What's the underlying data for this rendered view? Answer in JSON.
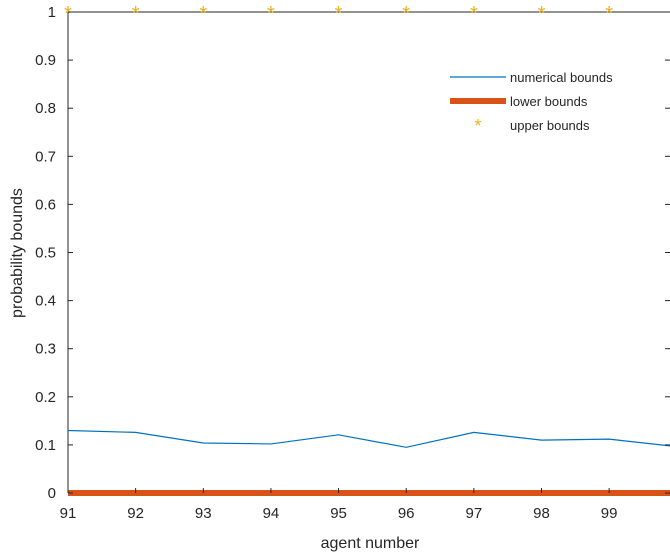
{
  "chart_data": {
    "type": "line",
    "xlabel": "agent number",
    "ylabel": "probability bounds",
    "xlim": [
      91,
      99.9
    ],
    "ylim": [
      0,
      1
    ],
    "xticks": [
      91,
      92,
      93,
      94,
      95,
      96,
      97,
      98,
      99
    ],
    "xtick_labels": [
      "91",
      "92",
      "93",
      "94",
      "95",
      "96",
      "97",
      "98",
      "99"
    ],
    "yticks": [
      0,
      0.1,
      0.2,
      0.3,
      0.4,
      0.5,
      0.6,
      0.7,
      0.8,
      0.9,
      1
    ],
    "ytick_labels": [
      "0",
      "0.1",
      "0.2",
      "0.3",
      "0.4",
      "0.5",
      "0.6",
      "0.7",
      "0.8",
      "0.9",
      "1"
    ],
    "grid": false,
    "legend_position": "top-right",
    "series": [
      {
        "name": "numerical bounds",
        "color": "#0072BD",
        "style": "line",
        "x": [
          91,
          92,
          93,
          94,
          95,
          96,
          97,
          98,
          99,
          99.9
        ],
        "values": [
          0.13,
          0.126,
          0.104,
          0.102,
          0.121,
          0.095,
          0.126,
          0.11,
          0.112,
          0.098
        ]
      },
      {
        "name": "lower bounds",
        "color": "#D95319",
        "style": "thick-line",
        "x": [
          91,
          92,
          93,
          94,
          95,
          96,
          97,
          98,
          99,
          99.9
        ],
        "values": [
          0,
          0,
          0,
          0,
          0,
          0,
          0,
          0,
          0,
          0
        ]
      },
      {
        "name": "upper bounds",
        "color": "#EDB120",
        "style": "marker",
        "x": [
          91,
          92,
          93,
          94,
          95,
          96,
          97,
          98,
          99
        ],
        "values": [
          1,
          1,
          1,
          1,
          1,
          1,
          1,
          1,
          1
        ]
      }
    ]
  }
}
